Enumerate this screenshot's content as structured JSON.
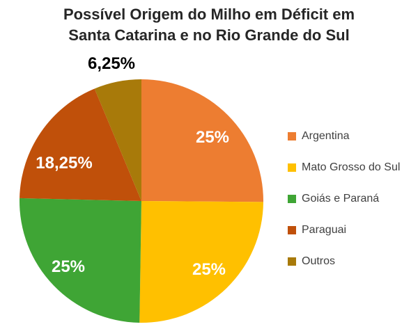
{
  "chart_data": {
    "type": "pie",
    "title": [
      "Possível Origem do Milho em Déficit em",
      "Santa Catarina e no Rio Grande do Sul"
    ],
    "slices": [
      {
        "name": "Argentina",
        "value": 25,
        "label": "25%",
        "color": "#ED7D31",
        "label_color": "#ffffff"
      },
      {
        "name": "Mato Grosso do Sul",
        "value": 25,
        "label": "25%",
        "color": "#FFC000",
        "label_color": "#ffffff"
      },
      {
        "name": "Goiás e Paraná",
        "value": 25,
        "label": "25%",
        "color": "#3FA535",
        "label_color": "#ffffff"
      },
      {
        "name": "Paraguai",
        "value": 18.25,
        "label": "18,25%",
        "color": "#C0500A",
        "label_color": "#ffffff"
      },
      {
        "name": "Outros",
        "value": 6.25,
        "label": "6,25%",
        "color": "#A87A0A",
        "label_color": "#000000"
      }
    ],
    "legend_position": "right",
    "start": "12 o'clock, clockwise"
  }
}
